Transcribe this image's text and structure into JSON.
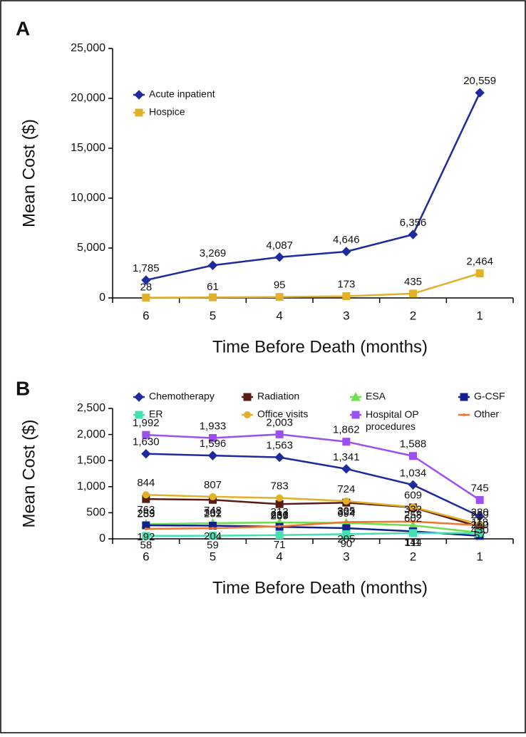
{
  "chart_data": [
    {
      "type": "line",
      "label": "A",
      "xlabel": "Time Before Death (months)",
      "ylabel": "Mean Cost ($)",
      "categories": [
        "6",
        "5",
        "4",
        "3",
        "2",
        "1"
      ],
      "ylim": [
        0,
        25000
      ],
      "yticks": [
        0,
        {
          "value": 5000,
          "label": "5,000"
        },
        {
          "value": 10000,
          "label": "10,000"
        },
        {
          "value": 15000,
          "label": "15,000"
        },
        {
          "value": 20000,
          "label": "20,000"
        },
        {
          "value": 25000,
          "label": "25,000"
        }
      ],
      "legend": "upper left",
      "legend_columns": 1,
      "series": [
        {
          "name": "Acute inpatient",
          "color": "#1f2a9c",
          "marker": "diamond",
          "values": [
            1785,
            3269,
            4087,
            4646,
            6356,
            20559
          ],
          "value_labels": [
            "1,785",
            "3,269",
            "4,087",
            "4,646",
            "6,356",
            "20,559"
          ]
        },
        {
          "name": "Hospice",
          "color": "#e2b12a",
          "marker": "square",
          "values": [
            28,
            61,
            95,
            173,
            435,
            2464
          ],
          "value_labels": [
            "28",
            "61",
            "95",
            "173",
            "435",
            "2,464"
          ]
        }
      ]
    },
    {
      "type": "line",
      "label": "B",
      "xlabel": "Time Before Death (months)",
      "ylabel": "Mean Cost ($)",
      "categories": [
        "6",
        "5",
        "4",
        "3",
        "2",
        "1"
      ],
      "ylim": [
        0,
        2500
      ],
      "yticks": [
        0,
        500,
        {
          "value": 1000,
          "label": "1,000"
        },
        {
          "value": 1500,
          "label": "1,500"
        },
        {
          "value": 2000,
          "label": "2,000"
        },
        {
          "value": 2500,
          "label": "2,500"
        }
      ],
      "legend": "top",
      "legend_columns": 4,
      "series": [
        {
          "name": "Chemotherapy",
          "color": "#1f2a9c",
          "marker": "diamond",
          "values": [
            1630,
            1596,
            1563,
            1341,
            1034,
            430
          ],
          "value_labels": [
            "1,630",
            "1,596",
            "1,563",
            "1,341",
            "1,034",
            "430"
          ]
        },
        {
          "name": "Radiation",
          "color": "#5a1c12",
          "marker": "square",
          "values": [
            763,
            748,
            666,
            694,
            602,
            229
          ],
          "value_labels": [
            "763",
            "748",
            "666",
            "694",
            "602",
            "229"
          ]
        },
        {
          "name": "ESA",
          "color": "#6ee04a",
          "marker": "triangle",
          "values": [
            283,
            301,
            313,
            305,
            258,
            118
          ],
          "value_labels": [
            "283",
            "301",
            "313",
            "305",
            "258",
            "118"
          ]
        },
        {
          "name": "G-CSF",
          "color": "#14208e",
          "marker": "square",
          "values": [
            259,
            252,
            231,
            205,
            144,
            57
          ],
          "value_labels": [
            "259",
            "252",
            "231",
            "205",
            "144",
            "57"
          ]
        },
        {
          "name": "ER",
          "color": "#44e0b4",
          "marker": "square",
          "values": [
            58,
            59,
            71,
            90,
            111,
            110
          ],
          "value_labels": [
            "58",
            "59",
            "71",
            "90",
            "111",
            null
          ]
        },
        {
          "name": "Office visits",
          "color": "#e2b12a",
          "marker": "circle",
          "values": [
            844,
            807,
            783,
            724,
            609,
            280
          ],
          "value_labels": [
            "844",
            "807",
            "783",
            "724",
            "609",
            "280"
          ]
        },
        {
          "name": "Hospital OP procedures",
          "color": "#9b50f0",
          "marker": "square",
          "values": [
            1992,
            1933,
            2003,
            1862,
            1588,
            745
          ],
          "value_labels": [
            "1,992",
            "1,933",
            "2,003",
            "1,862",
            "1,588",
            "745"
          ]
        },
        {
          "name": "Other",
          "color": "#f07432",
          "marker": "none",
          "values": [
            192,
            204,
            239,
            322,
            332,
            260
          ],
          "value_labels": [
            "192",
            "204",
            "239",
            "322",
            "332",
            "260"
          ]
        }
      ]
    }
  ]
}
